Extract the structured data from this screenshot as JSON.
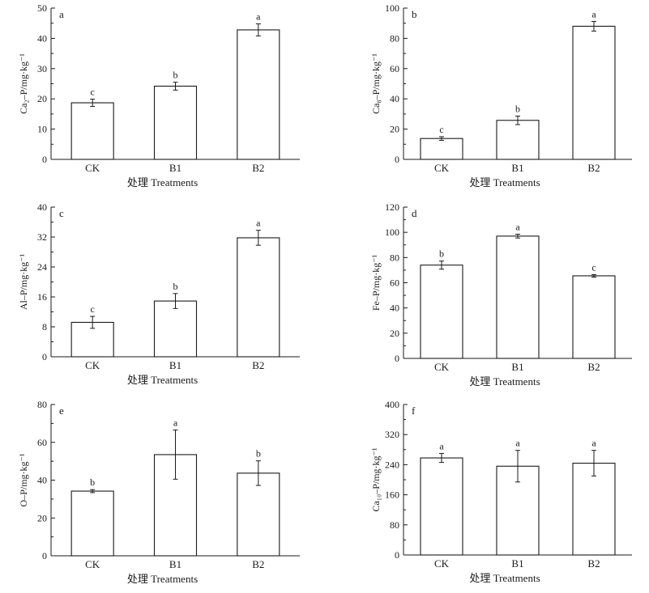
{
  "chart_data": [
    {
      "type": "bar",
      "panel": "a",
      "categories": [
        "CK",
        "B1",
        "B2"
      ],
      "values": [
        18.7,
        24.2,
        42.8
      ],
      "errors": [
        1.2,
        1.3,
        2.0
      ],
      "significance": [
        "c",
        "b",
        "a"
      ],
      "ylabel": "Ca₂–P/mg·kg⁻¹",
      "xlabel": "处理 Treatments",
      "ylim": [
        0,
        50
      ],
      "yticks": [
        "0",
        "10",
        "20",
        "30",
        "40",
        "50"
      ]
    },
    {
      "type": "bar",
      "panel": "b",
      "categories": [
        "CK",
        "B1",
        "B2"
      ],
      "values": [
        13.8,
        25.8,
        88.0
      ],
      "errors": [
        1.2,
        2.8,
        3.2
      ],
      "significance": [
        "c",
        "b",
        "a"
      ],
      "ylabel": "Ca₈–P/mg·kg⁻¹",
      "xlabel": "处理 Treatments",
      "ylim": [
        0,
        100
      ],
      "yticks": [
        "0",
        "20",
        "40",
        "60",
        "80",
        "100"
      ]
    },
    {
      "type": "bar",
      "panel": "c",
      "categories": [
        "CK",
        "B1",
        "B2"
      ],
      "values": [
        9.2,
        14.9,
        31.8
      ],
      "errors": [
        1.6,
        2.0,
        2.0
      ],
      "significance": [
        "c",
        "b",
        "a"
      ],
      "ylabel": "Al–P/mg·kg⁻¹",
      "xlabel": "处理 Treatments",
      "ylim": [
        0,
        40
      ],
      "yticks": [
        "0",
        "8",
        "16",
        "24",
        "32",
        "40"
      ]
    },
    {
      "type": "bar",
      "panel": "d",
      "categories": [
        "CK",
        "B1",
        "B2"
      ],
      "values": [
        74.0,
        97.0,
        65.5
      ],
      "errors": [
        3.2,
        1.5,
        1.0
      ],
      "significance": [
        "b",
        "a",
        "c"
      ],
      "ylabel": "Fe–P/mg·kg⁻¹",
      "xlabel": "处理 Treatments",
      "ylim": [
        0,
        120
      ],
      "yticks": [
        "0",
        "20",
        "40",
        "60",
        "80",
        "100",
        "120"
      ]
    },
    {
      "type": "bar",
      "panel": "e",
      "categories": [
        "CK",
        "B1",
        "B2"
      ],
      "values": [
        34.2,
        53.5,
        43.7
      ],
      "errors": [
        0.8,
        13.0,
        6.5
      ],
      "significance": [
        "b",
        "a",
        "b"
      ],
      "ylabel": "O–P/mg·kg⁻¹",
      "xlabel": "处理 Treatments",
      "ylim": [
        0,
        80
      ],
      "yticks": [
        "0",
        "20",
        "40",
        "60",
        "80"
      ]
    },
    {
      "type": "bar",
      "panel": "f",
      "categories": [
        "CK",
        "B1",
        "B2"
      ],
      "values": [
        258.0,
        236.0,
        244.0
      ],
      "errors": [
        12.0,
        42.0,
        34.0
      ],
      "significance": [
        "a",
        "a",
        "a"
      ],
      "ylabel": "Ca₁₀–P/mg·kg⁻¹",
      "xlabel": "处理 Treatments",
      "ylim": [
        0,
        400
      ],
      "yticks": [
        "0",
        "80",
        "160",
        "240",
        "320",
        "400"
      ]
    }
  ]
}
